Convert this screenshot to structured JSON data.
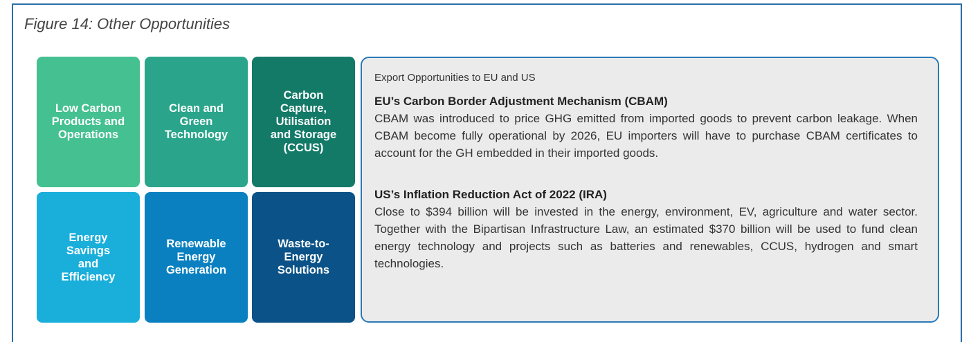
{
  "figure": {
    "title": "Figure 14: Other Opportunities",
    "tiles": [
      {
        "lines": [
          "Low Carbon",
          "Products and",
          "Operations"
        ],
        "color": "#45c091"
      },
      {
        "lines": [
          "Clean and",
          "Green",
          "Technology"
        ],
        "color": "#2aa58b"
      },
      {
        "lines": [
          "Carbon",
          "Capture,",
          "Utilisation",
          "and Storage",
          "(CCUS)"
        ],
        "color": "#147a68"
      },
      {
        "lines": [
          "Energy",
          "Savings",
          "and",
          "Efficiency"
        ],
        "color": "#1aaedb"
      },
      {
        "lines": [
          "Renewable",
          "Energy",
          "Generation"
        ],
        "color": "#0a80c0"
      },
      {
        "lines": [
          "Waste-to-",
          "Energy",
          "Solutions"
        ],
        "color": "#0a5287"
      }
    ],
    "panel": {
      "heading": "Export Opportunities to EU and US",
      "sections": [
        {
          "title": "EU’s Carbon Border Adjustment Mechanism (CBAM)",
          "text": "CBAM was introduced to price GHG emitted from imported goods to prevent carbon leakage. When CBAM become fully operational by 2026, EU importers will have to purchase CBAM certificates to account for the GH embedded in their imported goods."
        },
        {
          "title": "US’s Inflation Reduction Act of 2022 (IRA)",
          "text": "Close to $394 billion will be invested in the energy, environment, EV, agriculture and water sector. Together with the Bipartisan Infrastructure Law, an estimated $370 billion will be used to fund clean energy technology and projects such as batteries and renewables, CCUS, hydrogen and smart technologies."
        }
      ]
    }
  }
}
